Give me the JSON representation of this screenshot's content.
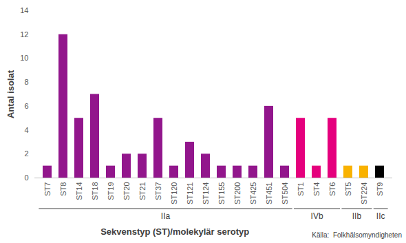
{
  "chart_data": {
    "type": "bar",
    "y_label": "Antal isolat",
    "x_label": "Sekvenstyp (ST)/molekylär serotyp",
    "source": "Källa:  Folkhälsomyndigheten",
    "categories": [
      "ST7",
      "ST8",
      "ST14",
      "ST18",
      "ST19",
      "ST20",
      "ST21",
      "ST37",
      "ST120",
      "ST121",
      "ST124",
      "ST155",
      "ST200",
      "ST425",
      "ST451",
      "ST504",
      "ST1",
      "ST4",
      "ST6",
      "ST5",
      "ST224",
      "ST9"
    ],
    "values": [
      1,
      12,
      5,
      7,
      1,
      2,
      2,
      5,
      1,
      3,
      2,
      1,
      1,
      1,
      6,
      1,
      5,
      1,
      5,
      1,
      1,
      1
    ],
    "colors": [
      "#92168c",
      "#92168c",
      "#92168c",
      "#92168c",
      "#92168c",
      "#92168c",
      "#92168c",
      "#92168c",
      "#92168c",
      "#92168c",
      "#92168c",
      "#92168c",
      "#92168c",
      "#92168c",
      "#92168c",
      "#92168c",
      "#e5007d",
      "#e5007d",
      "#e5007d",
      "#f9b200",
      "#f9b200",
      "#000000"
    ],
    "groups": [
      {
        "label": "IIa",
        "categories": [
          "ST7",
          "ST8",
          "ST14",
          "ST18",
          "ST19",
          "ST20",
          "ST21",
          "ST37",
          "ST120",
          "ST121",
          "ST124",
          "ST155",
          "ST200",
          "ST425",
          "ST451",
          "ST504"
        ]
      },
      {
        "label": "IVb",
        "categories": [
          "ST1",
          "ST4",
          "ST6"
        ]
      },
      {
        "label": "IIb",
        "categories": [
          "ST5",
          "ST224"
        ]
      },
      {
        "label": "IIc",
        "categories": [
          "ST9"
        ]
      }
    ],
    "ylim": [
      0,
      14
    ],
    "yticks": [
      0,
      2,
      4,
      6,
      8,
      10,
      12,
      14
    ],
    "grid": false
  }
}
